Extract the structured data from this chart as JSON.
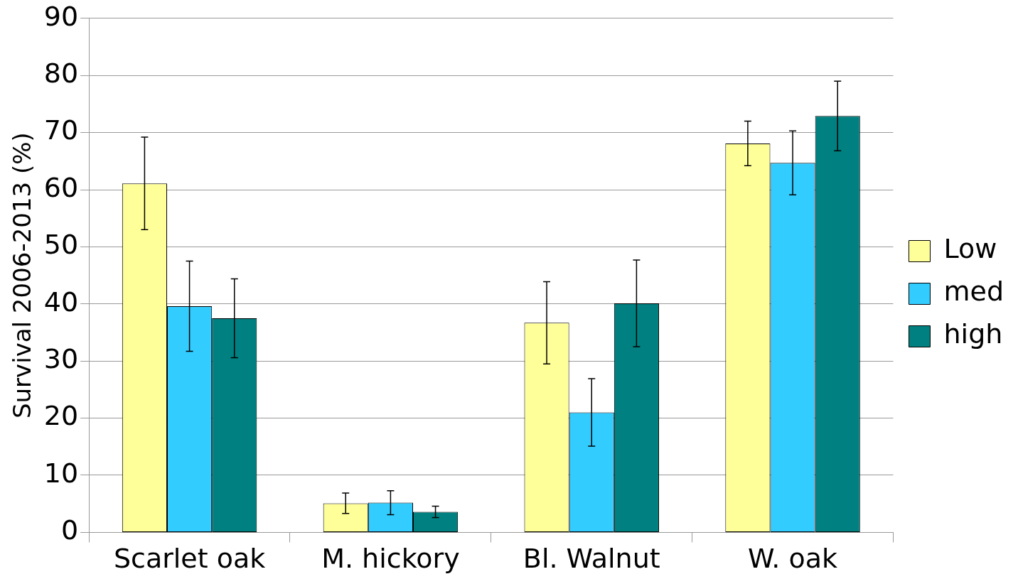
{
  "chart_data": {
    "type": "bar",
    "ylabel": "Survival 2006-2013 (%)",
    "categories": [
      "Scarlet oak",
      "M. hickory",
      "Bl. Walnut",
      "W. oak"
    ],
    "series": [
      {
        "name": "Low",
        "color": "#ffff99",
        "values": [
          61.1,
          5.1,
          36.7,
          68.1
        ],
        "errors": [
          8.1,
          1.8,
          7.2,
          3.9
        ]
      },
      {
        "name": "med",
        "color": "#33ccff",
        "values": [
          39.6,
          5.2,
          21.0,
          64.7
        ],
        "errors": [
          7.9,
          2.1,
          5.9,
          5.6
        ]
      },
      {
        "name": "high",
        "color": "#008080",
        "values": [
          37.5,
          3.6,
          40.1,
          72.9
        ],
        "errors": [
          6.9,
          1.0,
          7.6,
          6.1
        ]
      }
    ],
    "ylim": [
      0,
      90
    ],
    "yticks": [
      0,
      10,
      20,
      30,
      40,
      50,
      60,
      70,
      80,
      90
    ],
    "grid": "y",
    "legend": "right"
  }
}
